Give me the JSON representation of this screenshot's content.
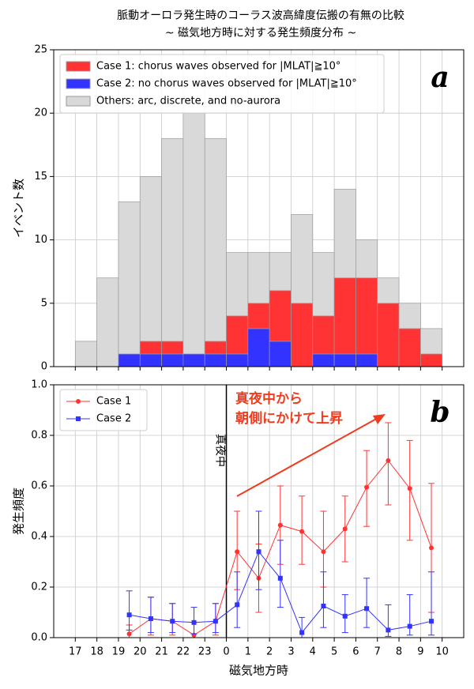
{
  "title": "脈動オーロラ発生時のコーラス波高緯度伝搬の有無の比較",
  "subtitle": "~ 磁気地方時に対する発生頻度分布 ~",
  "chart_data": [
    {
      "type": "histogram",
      "panel_label": "a",
      "ylabel": "イベント数",
      "bins": [
        17,
        18,
        19,
        20,
        21,
        22,
        23,
        24,
        25,
        26,
        27,
        28,
        29,
        30,
        31,
        32,
        33,
        34
      ],
      "series": [
        {
          "name": "Case 1: chorus waves observed for |MLAT|≧10°",
          "color": "#ff3333",
          "values": [
            0,
            0,
            0,
            1,
            1,
            0,
            1,
            3,
            2,
            4,
            5,
            3,
            6,
            6,
            5,
            3,
            1
          ]
        },
        {
          "name": "Case 2: no chorus waves observed for |MLAT|≧10°",
          "color": "#3333ff",
          "values": [
            0,
            0,
            1,
            1,
            1,
            1,
            1,
            1,
            3,
            2,
            0,
            1,
            1,
            1,
            0,
            0,
            0
          ]
        },
        {
          "name": "Others: arc, discrete, and no-aurora",
          "color": "#d9d9d9",
          "values": [
            2,
            7,
            12,
            13,
            16,
            19,
            16,
            5,
            4,
            3,
            7,
            5,
            7,
            3,
            2,
            2,
            2
          ]
        }
      ],
      "xlim": [
        16,
        35
      ],
      "ylim": [
        0,
        25
      ],
      "yticks": [
        0,
        5,
        10,
        15,
        20,
        25
      ],
      "grid": true,
      "legend": "upper left"
    },
    {
      "type": "line",
      "panel_label": "b",
      "ylabel": "発生頻度",
      "xlabel": "磁気地方時",
      "x": [
        19.5,
        20.5,
        21.5,
        22.5,
        23.5,
        24.5,
        25.5,
        26.5,
        27.5,
        28.5,
        29.5,
        30.5,
        31.5,
        32.5,
        33.5
      ],
      "series": [
        {
          "name": "Case 1",
          "color": "#ff3333",
          "values": [
            0.015,
            0.075,
            0.065,
            0.01,
            0.065,
            0.34,
            0.235,
            0.445,
            0.42,
            0.34,
            0.43,
            0.595,
            0.7,
            0.59,
            0.355
          ],
          "lower": [
            0,
            0.01,
            0.01,
            0,
            0.01,
            0.19,
            0.1,
            0.29,
            0.29,
            0.2,
            0.3,
            0.44,
            0.525,
            0.385,
            0.1
          ],
          "upper": [
            0.05,
            0.16,
            0.135,
            0.06,
            0.135,
            0.5,
            0.37,
            0.6,
            0.56,
            0.5,
            0.56,
            0.74,
            0.85,
            0.78,
            0.61
          ]
        },
        {
          "name": "Case 2",
          "color": "#3333ff",
          "values": [
            0.09,
            0.075,
            0.065,
            0.06,
            0.065,
            0.13,
            0.34,
            0.235,
            0.02,
            0.125,
            0.085,
            0.115,
            0.03,
            0.045,
            0.065
          ],
          "lower": [
            0.03,
            0.02,
            0.02,
            0.015,
            0.02,
            0.04,
            0.19,
            0.12,
            0,
            0.04,
            0.02,
            0.04,
            0.005,
            0.01,
            0.01
          ],
          "upper": [
            0.185,
            0.16,
            0.135,
            0.12,
            0.135,
            0.26,
            0.5,
            0.385,
            0.08,
            0.26,
            0.17,
            0.235,
            0.13,
            0.17,
            0.26
          ]
        }
      ],
      "xlim": [
        16,
        35
      ],
      "ylim": [
        0,
        1
      ],
      "xticks": [
        17,
        18,
        19,
        20,
        21,
        22,
        23,
        {
          "value": 24,
          "label": "0"
        },
        {
          "value": 25,
          "label": "1"
        },
        {
          "value": 26,
          "label": "2"
        },
        {
          "value": 27,
          "label": "3"
        },
        {
          "value": 28,
          "label": "4"
        },
        {
          "value": 29,
          "label": "5"
        },
        {
          "value": 30,
          "label": "6"
        },
        {
          "value": 31,
          "label": "7"
        },
        {
          "value": 32,
          "label": "8"
        },
        {
          "value": 33,
          "label": "9"
        },
        {
          "value": 34,
          "label": "10"
        }
      ],
      "yticks": [
        {
          "value": 0,
          "label": "0.0"
        },
        0.2,
        0.4,
        0.6,
        0.8,
        {
          "value": 1,
          "label": "1.0"
        }
      ],
      "grid": true,
      "legend": "upper left",
      "vline": {
        "x": 24,
        "label": "真夜中"
      },
      "annotations": [
        "真夜中から",
        "朝側にかけて上昇"
      ]
    }
  ]
}
